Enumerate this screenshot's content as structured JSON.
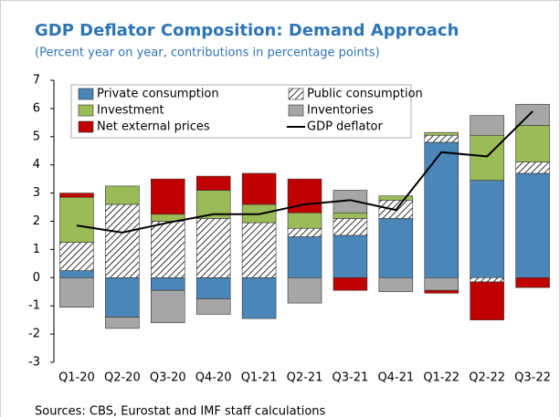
{
  "chart_data": {
    "type": "bar",
    "stacked": true,
    "title": "GDP Deflator Composition: Demand Approach",
    "subtitle": "(Percent year on year, contributions in percentage points)",
    "source": "Sources: CBS, Eurostat and IMF staff calculations",
    "categories": [
      "Q1-20",
      "Q2-20",
      "Q3-20",
      "Q4-20",
      "Q1-21",
      "Q2-21",
      "Q3-21",
      "Q4-21",
      "Q1-22",
      "Q2-22",
      "Q3-22"
    ],
    "series": [
      {
        "name": "Private consumption",
        "color": "#4a86b8",
        "values": [
          0.25,
          -1.4,
          -0.45,
          -0.75,
          -1.45,
          1.45,
          1.5,
          2.1,
          4.8,
          3.45,
          3.7
        ]
      },
      {
        "name": "Public consumption",
        "color": "#ffffff",
        "hatch": true,
        "values": [
          1.0,
          2.6,
          2.0,
          2.1,
          1.95,
          0.3,
          0.6,
          0.65,
          0.25,
          -0.15,
          0.4
        ]
      },
      {
        "name": "Investment",
        "color": "#9bbb59",
        "values": [
          1.6,
          0.65,
          0.25,
          1.0,
          0.65,
          0.55,
          0.2,
          0.15,
          0.1,
          1.6,
          1.3
        ]
      },
      {
        "name": "Inventories",
        "color": "#a6a6a6",
        "values": [
          -1.05,
          -0.4,
          -1.15,
          -0.55,
          0.0,
          -0.9,
          0.8,
          -0.5,
          -0.45,
          0.7,
          0.75
        ]
      },
      {
        "name": "Net external prices",
        "color": "#c00000",
        "values": [
          0.15,
          0.0,
          1.25,
          0.5,
          1.1,
          1.2,
          -0.45,
          0.0,
          -0.1,
          -1.35,
          -0.35
        ]
      },
      {
        "name": "GDP deflator",
        "type": "line",
        "color": "#000000",
        "values": [
          1.85,
          1.6,
          1.95,
          2.25,
          2.25,
          2.6,
          2.75,
          2.4,
          4.45,
          4.3,
          5.9
        ]
      }
    ],
    "ylim": [
      -3,
      7
    ],
    "yticks": [
      -3,
      -2,
      -1,
      0,
      1,
      2,
      3,
      4,
      5,
      6,
      7
    ],
    "grid": false,
    "legend": "top-left"
  }
}
